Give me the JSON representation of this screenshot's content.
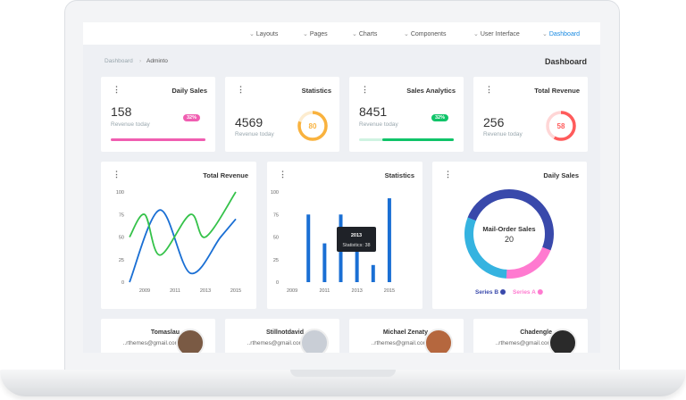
{
  "nav": {
    "items": [
      "Layouts",
      "Pages",
      "Charts",
      "Components",
      "User Interface",
      "Dashboard"
    ]
  },
  "breadcrumb": [
    "Dashboard",
    "Adminto"
  ],
  "page_title": "Dashboard",
  "stats": [
    {
      "title": "Daily Sales",
      "value": "158",
      "caption": "Revenue today",
      "badge": "32%",
      "color": "#f05eb1"
    },
    {
      "title": "Statistics",
      "value": "4569",
      "caption": "Revenue today",
      "gauge": 80,
      "color": "#f9b23e"
    },
    {
      "title": "Sales Analytics",
      "value": "8451",
      "caption": "Revenue today",
      "badge": "32%",
      "color": "#10c469"
    },
    {
      "title": "Total Revenue",
      "value": "256",
      "caption": "Revenue today",
      "gauge": 58,
      "color": "#ff5b5b"
    }
  ],
  "chart_data": [
    {
      "type": "line",
      "title": "Total Revenue",
      "xlim": [
        2008,
        2015
      ],
      "xticks": [
        2009,
        2011,
        2013,
        2015
      ],
      "ylim": [
        0,
        100
      ],
      "yticks": [
        0,
        25,
        50,
        75,
        100
      ],
      "series": [
        {
          "name": null,
          "color": "#1a6fd4",
          "x": [
            2008,
            2010,
            2012,
            2014,
            2015
          ],
          "values": [
            0,
            80,
            10,
            50,
            70
          ]
        },
        {
          "name": null,
          "color": "#35c24a",
          "x": [
            2008,
            2009,
            2010,
            2012,
            2013,
            2015
          ],
          "values": [
            50,
            75,
            30,
            75,
            50,
            100
          ]
        }
      ]
    },
    {
      "type": "bar",
      "title": "Statistics",
      "color": "#1a6fd4",
      "x": [
        2010,
        2011,
        2012,
        2013,
        2014,
        2015
      ],
      "values": [
        75,
        43,
        75,
        38,
        19,
        93
      ],
      "xlim": [
        2008.5,
        2015.5
      ],
      "xticks": [
        2009,
        2011,
        2013,
        2015
      ],
      "ylim": [
        0,
        100
      ],
      "yticks": [
        0,
        25,
        50,
        75,
        100
      ],
      "tooltip": {
        "title": "2013",
        "label": "Statistics: 38"
      }
    },
    {
      "type": "pie",
      "title": "Daily Sales",
      "center_label": "Mail-Order Sales",
      "center_value": 20,
      "categories": [
        "Series B",
        "Series A",
        null
      ],
      "values": [
        50,
        20,
        30
      ],
      "colors": [
        "#3949ab",
        "#ff7ad0",
        "#35b3e0"
      ]
    }
  ],
  "users": [
    {
      "name": "Tomaslau",
      "email": "..rthemes@gmail.com"
    },
    {
      "name": "Stillnotdavid",
      "email": "..rthemes@gmail.com"
    },
    {
      "name": "Michael Zenaty",
      "email": "..rthemes@gmail.com"
    },
    {
      "name": "Chadengle",
      "email": "..rthemes@gmail.com"
    }
  ]
}
